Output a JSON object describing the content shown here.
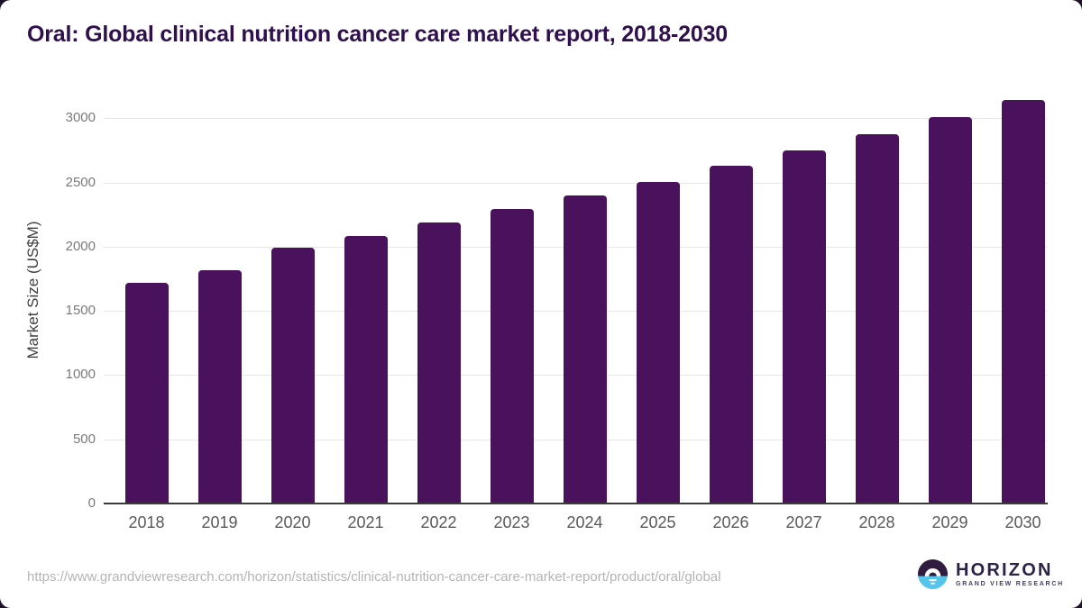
{
  "page": {
    "title": "Oral: Global clinical nutrition cancer care market report, 2018-2030",
    "source_url": "https://www.grandviewresearch.com/horizon/statistics/clinical-nutrition-cancer-care-market-report/product/oral/global"
  },
  "logo": {
    "name": "HORIZON",
    "subtitle": "GRAND VIEW RESEARCH",
    "icon": "horizon-sun-icon",
    "colors": {
      "circle_top": "#2f1c40",
      "circle_bottom": "#56c5ec",
      "glyph": "#ffffff",
      "text": "#2e2247",
      "subtext": "#473a6b"
    }
  },
  "chart_data": {
    "type": "bar",
    "title": "Oral: Global clinical nutrition cancer care market report, 2018-2030",
    "categories": [
      "2018",
      "2019",
      "2020",
      "2021",
      "2022",
      "2023",
      "2024",
      "2025",
      "2026",
      "2027",
      "2028",
      "2029",
      "2030"
    ],
    "values": [
      1720,
      1815,
      1990,
      2085,
      2190,
      2295,
      2400,
      2505,
      2630,
      2750,
      2875,
      3010,
      3145
    ],
    "series_name": "Market Size (US$M)",
    "xlabel": "",
    "ylabel": "Market Size (US$M)",
    "ylim": [
      0,
      3000
    ],
    "yticks": [
      0,
      500,
      1000,
      1500,
      2000,
      2500,
      3000
    ],
    "grid": true,
    "legend_position": "none",
    "bar_color": "#4a115c",
    "axis_label_color": "#7a7a7a",
    "title_color": "#2f0f4d"
  }
}
